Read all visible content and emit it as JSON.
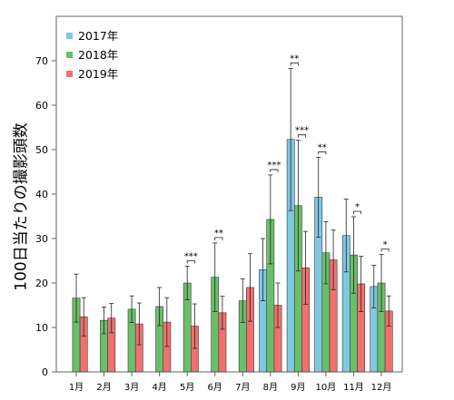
{
  "chart_data": {
    "type": "bar",
    "ylabel": "100日当たりの撮影頭数",
    "xlabel": "",
    "categories": [
      "1月",
      "2月",
      "3月",
      "4月",
      "5月",
      "6月",
      "7月",
      "8月",
      "9月",
      "10月",
      "11月",
      "12月"
    ],
    "ylim": [
      0,
      80
    ],
    "yticks": [
      0,
      10,
      20,
      30,
      40,
      50,
      60,
      70
    ],
    "grid": false,
    "legend_position": "top-left",
    "series": [
      {
        "name": "2017年",
        "color": "#7ec8e3",
        "values": [
          null,
          null,
          null,
          null,
          null,
          null,
          null,
          23.0,
          52.3,
          39.3,
          30.7,
          19.2
        ],
        "errors": [
          null,
          null,
          null,
          null,
          null,
          null,
          null,
          7.0,
          16.0,
          9.0,
          8.2,
          4.8
        ]
      },
      {
        "name": "2018年",
        "color": "#6abf69",
        "values": [
          16.6,
          11.6,
          14.1,
          14.7,
          20.0,
          21.3,
          16.0,
          34.3,
          37.4,
          26.8,
          26.3,
          20.0
        ],
        "errors": [
          5.4,
          3.0,
          3.0,
          4.3,
          3.8,
          7.7,
          4.9,
          10.0,
          14.7,
          7.0,
          8.6,
          6.4
        ]
      },
      {
        "name": "2019年",
        "color": "#f07070",
        "values": [
          12.4,
          12.1,
          10.8,
          11.2,
          10.3,
          13.3,
          19.0,
          15.0,
          23.4,
          25.2,
          19.8,
          13.7
        ],
        "errors": [
          4.3,
          3.3,
          4.7,
          5.5,
          5.0,
          3.7,
          7.6,
          5.0,
          8.2,
          6.7,
          6.2,
          3.4
        ]
      }
    ],
    "significance": [
      {
        "category": "5月",
        "label": "***",
        "pair": [
          1,
          2
        ]
      },
      {
        "category": "6月",
        "label": "**",
        "pair": [
          1,
          2
        ]
      },
      {
        "category": "8月",
        "label": "***",
        "pair": [
          1,
          2
        ]
      },
      {
        "category": "9月",
        "label": "**",
        "pair": [
          0,
          1
        ]
      },
      {
        "category": "9月",
        "label": "***",
        "pair": [
          1,
          2
        ]
      },
      {
        "category": "10月",
        "label": "**",
        "pair": [
          0,
          1
        ]
      },
      {
        "category": "11月",
        "label": "*",
        "pair": [
          1,
          2
        ]
      },
      {
        "category": "12月",
        "label": "*",
        "pair": [
          1,
          2
        ]
      }
    ]
  }
}
